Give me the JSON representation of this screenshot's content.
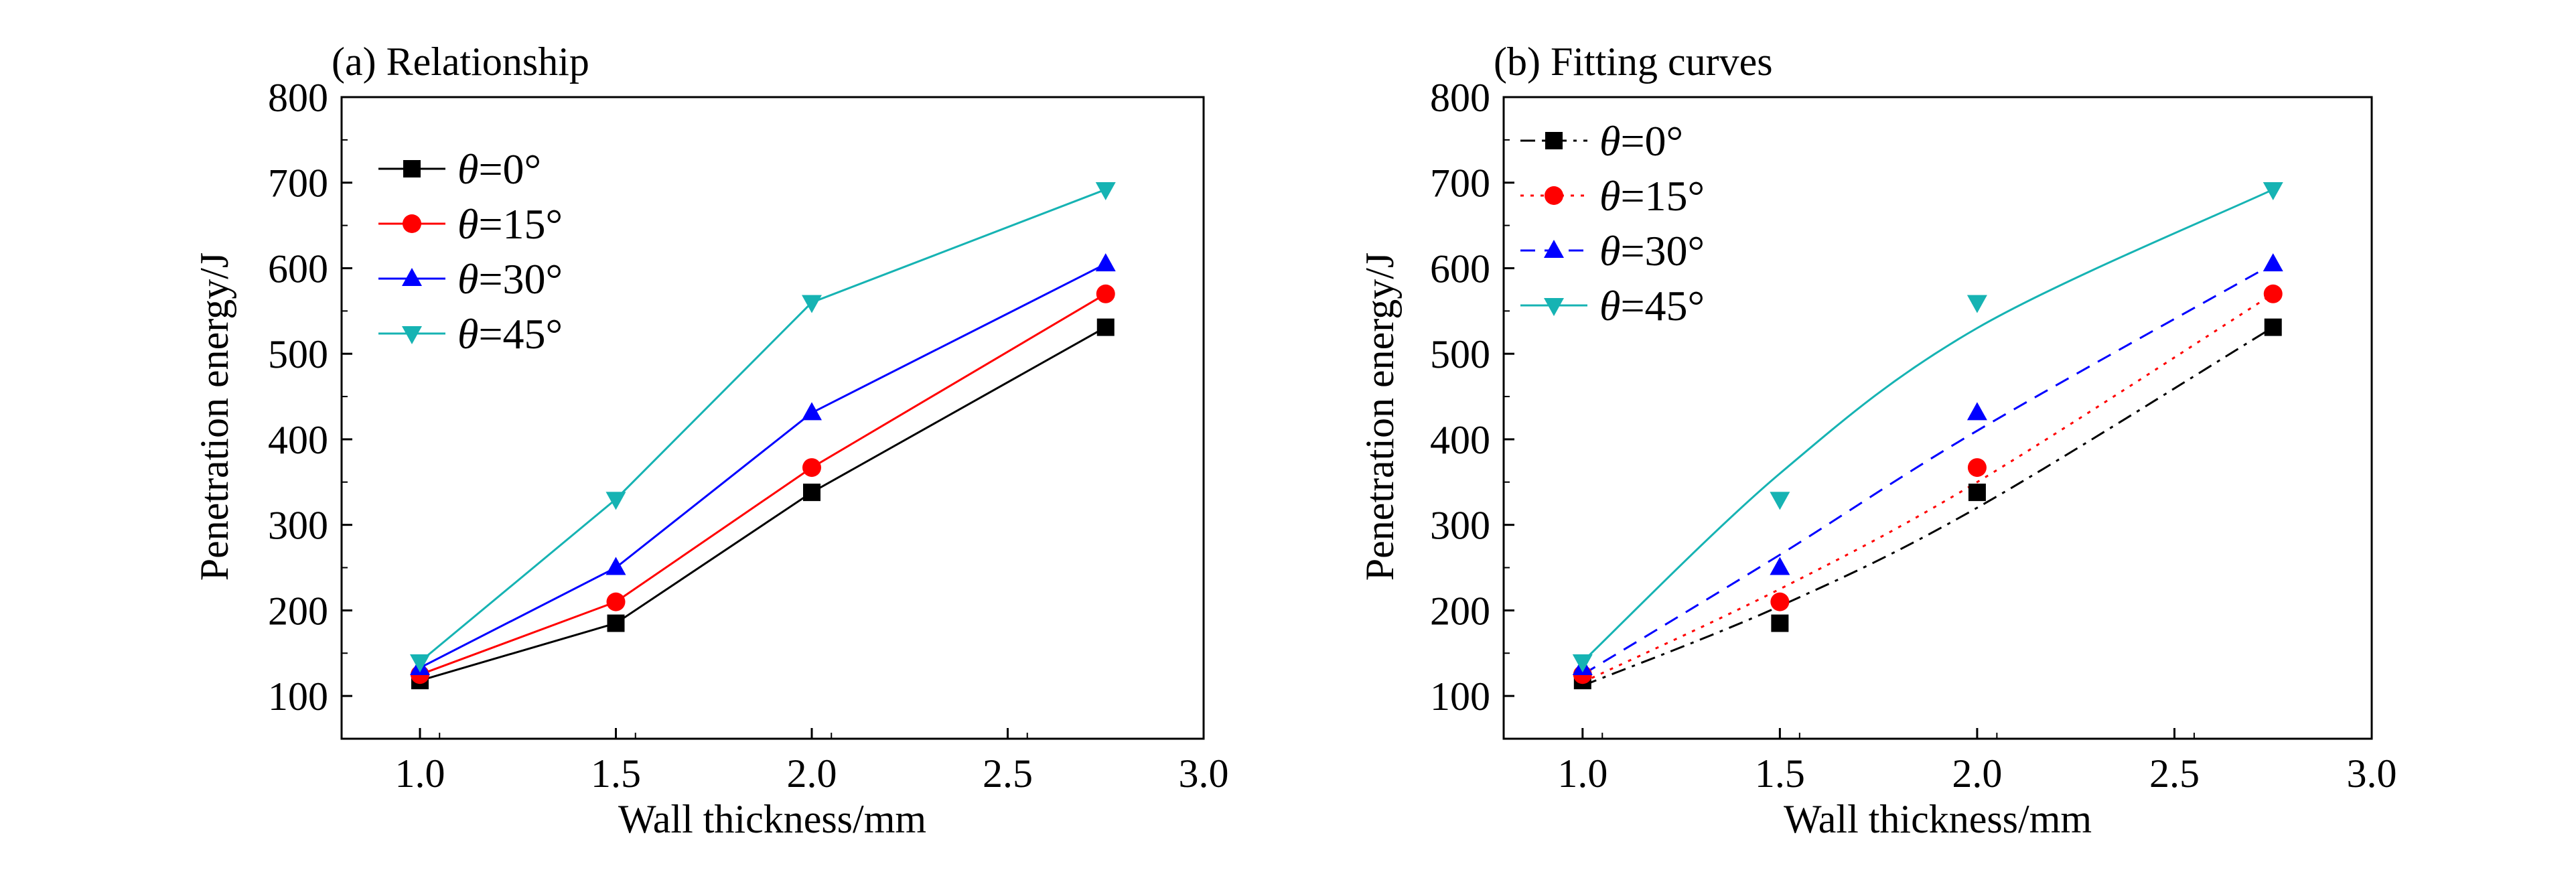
{
  "chart_data": [
    {
      "panel": "a",
      "type": "line",
      "title": "(a) Relationship",
      "xlabel": "Wall thickness/mm",
      "ylabel": "Penetration energy/J",
      "xlim": [
        0.8,
        3.0
      ],
      "ylim": [
        50,
        800
      ],
      "xticks": [
        1.0,
        1.5,
        2.0,
        2.5,
        3.0
      ],
      "yticks": [
        100,
        200,
        300,
        400,
        500,
        600,
        700,
        800
      ],
      "x": [
        1.0,
        1.5,
        2.0,
        2.75
      ],
      "legend_position": "top-left",
      "series": [
        {
          "name_prefix": "θ",
          "name_suffix": "=0°",
          "color": "#000000",
          "marker": "square",
          "line": "solid",
          "values": [
            118,
            185,
            338,
            531
          ]
        },
        {
          "name_prefix": "θ",
          "name_suffix": "=15°",
          "color": "#ff0000",
          "marker": "circle",
          "line": "solid",
          "values": [
            125,
            210,
            367,
            570
          ]
        },
        {
          "name_prefix": "θ",
          "name_suffix": "=30°",
          "color": "#0000ff",
          "marker": "triangle-up",
          "line": "solid",
          "values": [
            133,
            250,
            431,
            605
          ]
        },
        {
          "name_prefix": "θ",
          "name_suffix": "=45°",
          "color": "#16b3b3",
          "marker": "triangle-down",
          "line": "solid",
          "values": [
            140,
            330,
            560,
            692
          ]
        }
      ]
    },
    {
      "panel": "b",
      "type": "scatter",
      "title": "(b) Fitting curves",
      "xlabel": "Wall thickness/mm",
      "ylabel": "Penetration energy/J",
      "xlim": [
        0.8,
        3.0
      ],
      "ylim": [
        50,
        800
      ],
      "xticks": [
        1.0,
        1.5,
        2.0,
        2.5,
        3.0
      ],
      "yticks": [
        100,
        200,
        300,
        400,
        500,
        600,
        700,
        800
      ],
      "x": [
        1.0,
        1.5,
        2.0,
        2.75
      ],
      "legend_position": "top-left",
      "series": [
        {
          "name_prefix": "θ",
          "name_suffix": "=0°",
          "color": "#000000",
          "marker": "square",
          "line": "dashdot",
          "values": [
            118,
            185,
            338,
            531
          ],
          "fit": [
            [
              1.0,
              112
            ],
            [
              1.5,
              205
            ],
            [
              2.0,
              320
            ],
            [
              2.75,
              531
            ]
          ]
        },
        {
          "name_prefix": "θ",
          "name_suffix": "=15°",
          "color": "#ff0000",
          "marker": "circle",
          "line": "dotted",
          "values": [
            125,
            210,
            367,
            570
          ],
          "fit": [
            [
              1.0,
              116
            ],
            [
              1.5,
              225
            ],
            [
              2.0,
              350
            ],
            [
              2.75,
              570
            ]
          ]
        },
        {
          "name_prefix": "θ",
          "name_suffix": "=30°",
          "color": "#0000ff",
          "marker": "triangle-up",
          "line": "dashed",
          "values": [
            133,
            250,
            431,
            605
          ],
          "fit": [
            [
              1.0,
              125
            ],
            [
              1.5,
              265
            ],
            [
              2.0,
              410
            ],
            [
              2.75,
              605
            ]
          ]
        },
        {
          "name_prefix": "θ",
          "name_suffix": "=45°",
          "color": "#16b3b3",
          "marker": "triangle-down",
          "line": "solid",
          "values": [
            140,
            330,
            560,
            692
          ],
          "fit": [
            [
              1.0,
              140
            ],
            [
              1.5,
              360
            ],
            [
              2.0,
              530
            ],
            [
              2.75,
              692
            ]
          ]
        }
      ]
    }
  ]
}
